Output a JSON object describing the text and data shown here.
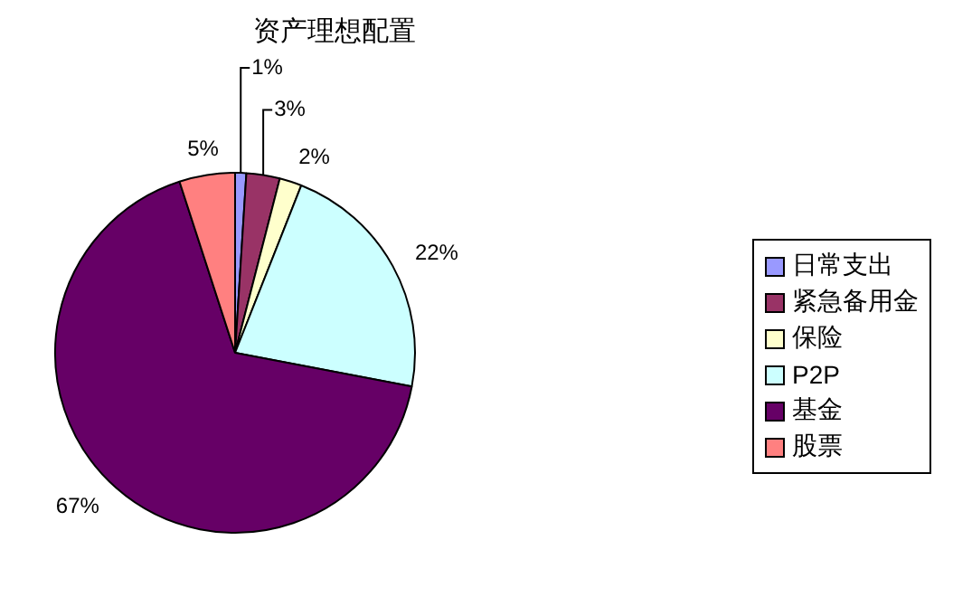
{
  "chart_data": {
    "type": "pie",
    "title": "资产理想配置",
    "categories": [
      "日常支出",
      "紧急备用金",
      "保险",
      "P2P",
      "基金",
      "股票"
    ],
    "values": [
      1,
      3,
      2,
      22,
      67,
      5
    ],
    "colors": [
      "#9999ff",
      "#993366",
      "#ffffcc",
      "#ccffff",
      "#660066",
      "#ff8080"
    ],
    "value_labels": [
      "1%",
      "3%",
      "2%",
      "22%",
      "67%",
      "5%"
    ],
    "legend": "right"
  }
}
